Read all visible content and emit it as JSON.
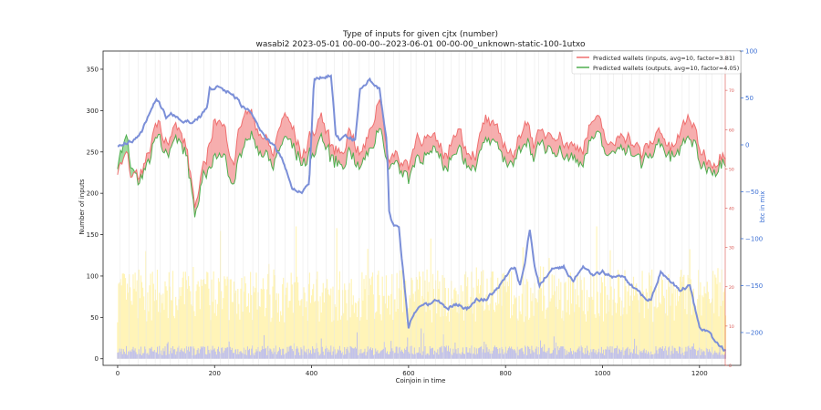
{
  "chart_data": {
    "type": "line",
    "title": "Type of inputs for given cjtx (number)",
    "subtitle": "wasabi2 2023-05-01 00-00-00--2023-06-01 00-00-00_unknown-static-100-1utxo",
    "xlabel": "Coinjoin in time",
    "ylabel": "Number of inputs",
    "y2label": "btc in mix",
    "xlim": [
      -30,
      1285
    ],
    "ylim": [
      -8,
      372
    ],
    "y2lim": [
      -235,
      100
    ],
    "x_ticks": [
      0,
      200,
      400,
      600,
      800,
      1000,
      1200
    ],
    "y_ticks": [
      0,
      50,
      100,
      150,
      200,
      250,
      300,
      350
    ],
    "y2_ticks": [
      100,
      50,
      0,
      -50,
      -100,
      -150,
      -200
    ],
    "y3_ticks": [
      70,
      60,
      50,
      40,
      30,
      20,
      10,
      0
    ],
    "grid": false,
    "legend_position": "top-right",
    "colors": {
      "inputs": "#ef6f6f",
      "outputs": "#4fae4f",
      "btc": "#7b8fd8",
      "fill_red": "#f5a0a0",
      "fill_green": "#8fd38f",
      "background_yellow": "#fff3b0",
      "background_blue": "#b7b9f2",
      "right_axis_blue": "#3b6fd4",
      "right_axis_red": "#d9534f"
    },
    "series": [
      {
        "name": "Predicted wallets (inputs, avg=10, factor=3.81)",
        "axis": "left",
        "x": [
          0,
          20,
          40,
          60,
          80,
          100,
          120,
          140,
          160,
          180,
          200,
          220,
          240,
          260,
          280,
          300,
          320,
          340,
          360,
          380,
          400,
          420,
          440,
          460,
          480,
          500,
          520,
          540,
          560,
          580,
          600,
          620,
          640,
          660,
          680,
          700,
          720,
          740,
          760,
          780,
          800,
          820,
          840,
          860,
          880,
          900,
          920,
          940,
          960,
          980,
          1000,
          1020,
          1040,
          1060,
          1080,
          1100,
          1120,
          1140,
          1160,
          1180,
          1200,
          1220,
          1240,
          1255
        ],
        "values": [
          225,
          235,
          215,
          240,
          290,
          270,
          280,
          260,
          185,
          230,
          295,
          275,
          245,
          300,
          290,
          270,
          245,
          295,
          280,
          245,
          270,
          295,
          255,
          250,
          280,
          245,
          270,
          320,
          245,
          240,
          235,
          275,
          265,
          255,
          245,
          285,
          255,
          250,
          290,
          270,
          260,
          245,
          295,
          260,
          270,
          280,
          265,
          255,
          260,
          290,
          275,
          250,
          280,
          265,
          245,
          260,
          280,
          250,
          270,
          295,
          255,
          240,
          245,
          255
        ]
      },
      {
        "name": "Predicted wallets (outputs, avg=10, factor=4.05)",
        "axis": "left",
        "x": [
          0,
          20,
          40,
          60,
          80,
          100,
          120,
          140,
          160,
          180,
          200,
          220,
          240,
          260,
          280,
          300,
          320,
          340,
          360,
          380,
          400,
          420,
          440,
          460,
          480,
          500,
          520,
          540,
          560,
          580,
          600,
          620,
          640,
          660,
          680,
          700,
          720,
          740,
          760,
          780,
          800,
          820,
          840,
          860,
          880,
          900,
          920,
          940,
          960,
          980,
          1000,
          1020,
          1040,
          1060,
          1080,
          1100,
          1120,
          1140,
          1160,
          1180,
          1200,
          1220,
          1240,
          1255
        ],
        "values": [
          235,
          255,
          210,
          230,
          275,
          255,
          265,
          250,
          175,
          215,
          250,
          240,
          220,
          260,
          265,
          250,
          230,
          265,
          260,
          235,
          245,
          270,
          240,
          235,
          255,
          230,
          250,
          285,
          235,
          230,
          220,
          250,
          245,
          240,
          230,
          260,
          240,
          235,
          265,
          250,
          245,
          235,
          270,
          245,
          255,
          260,
          250,
          240,
          245,
          270,
          255,
          240,
          265,
          250,
          235,
          245,
          265,
          240,
          250,
          270,
          240,
          230,
          235,
          245
        ]
      },
      {
        "name": "",
        "axis": "right",
        "x": [
          0,
          30,
          50,
          70,
          80,
          90,
          100,
          110,
          130,
          150,
          170,
          185,
          190,
          200,
          205,
          215,
          235,
          260,
          275,
          300,
          320,
          340,
          360,
          380,
          395,
          405,
          440,
          450,
          460,
          470,
          490,
          500,
          520,
          540,
          555,
          560,
          565,
          570,
          580,
          600,
          610,
          620,
          640,
          660,
          680,
          700,
          720,
          740,
          760,
          780,
          800,
          820,
          830,
          840,
          850,
          860,
          870,
          890,
          900,
          920,
          940,
          960,
          980,
          1000,
          1020,
          1040,
          1060,
          1080,
          1100,
          1120,
          1140,
          1160,
          1180,
          1200,
          1220,
          1240,
          1255
        ],
        "values": [
          0,
          5,
          15,
          40,
          50,
          40,
          30,
          35,
          25,
          25,
          30,
          40,
          60,
          60,
          65,
          60,
          55,
          40,
          35,
          10,
          0,
          -15,
          -45,
          -50,
          -40,
          70,
          75,
          10,
          5,
          10,
          5,
          60,
          70,
          60,
          5,
          -70,
          -82,
          -85,
          -90,
          -195,
          -180,
          -175,
          -170,
          -165,
          -175,
          -170,
          -175,
          -165,
          -165,
          -155,
          -140,
          -130,
          -150,
          -125,
          -90,
          -130,
          -150,
          -135,
          -130,
          -130,
          -145,
          -130,
          -140,
          -135,
          -140,
          -140,
          -150,
          -160,
          -165,
          -135,
          -145,
          -155,
          -150,
          -195,
          -200,
          -215,
          -220
        ]
      }
    ],
    "background_bars": {
      "yellow_max": 160,
      "yellow_typical": 80,
      "blue_typical": 10
    }
  }
}
